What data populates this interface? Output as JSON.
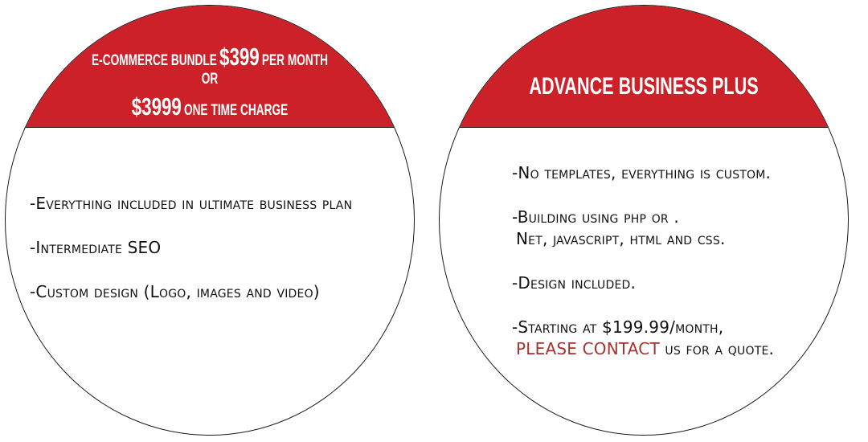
{
  "left_card": {
    "header_line1_pre": "E-commerce bundle",
    "header_line1_price": "$399",
    "header_line1_post": "per month",
    "header_line2": "or",
    "header_line3_price": "$3999",
    "header_line3_post": "one time charge",
    "features": [
      "-Everything included in ultimate business plan",
      "-Intermediate SEO",
      "-Custom design (Logo, images and video)"
    ]
  },
  "right_card": {
    "title": "Advance Business Plus",
    "feature1": "-No templates, everything is custom.",
    "feature2_line1": "-Building using php or .",
    "feature2_line2": "Net, javascript, html and css.",
    "feature3": "-Design included.",
    "feature4_line1": "-Starting at $199.99/month,",
    "contact_link": "PLEASE CONTACT",
    "feature4_line2_rest": "us for a quote."
  },
  "colors": {
    "header_red": "#cc2129",
    "contact_red": "#a6322e",
    "outline": "#1a1a1a"
  }
}
